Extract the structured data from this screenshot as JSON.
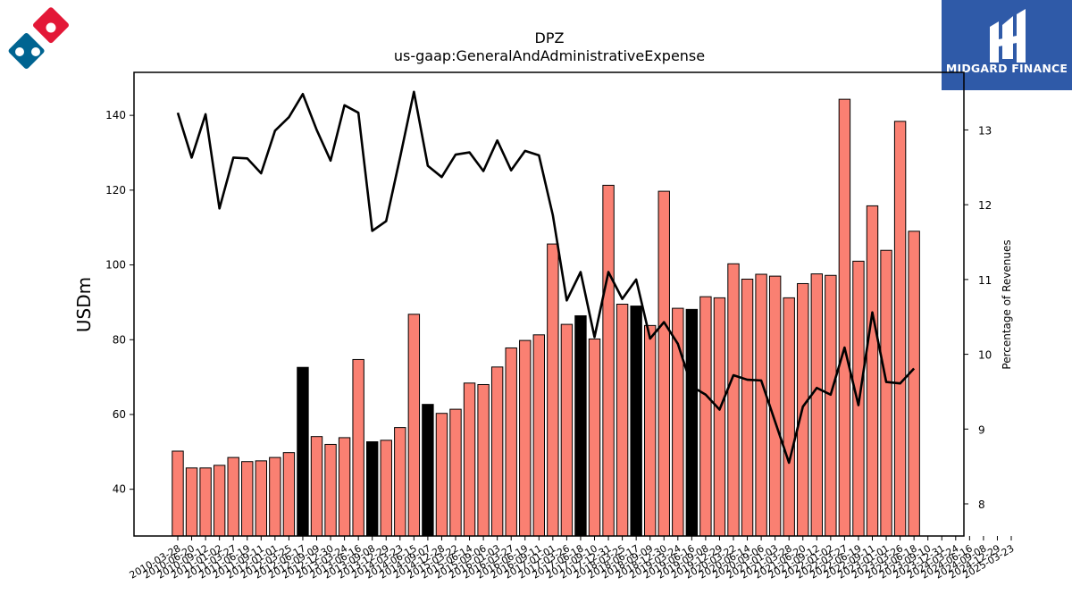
{
  "brand": {
    "name": "MIDGARD FINANCE",
    "box_color": "#2f5aa8",
    "company_logo_colors": {
      "blue": "#006491",
      "red": "#e31837"
    }
  },
  "chart_data": {
    "type": "bar",
    "title": "DPZ",
    "subtitle": "us-gaap:GeneralAndAdministrativeExpense",
    "ylabel": "USDm",
    "ylabel_right": "Percentage of Revenues",
    "ylim": [
      27.5,
      151.5
    ],
    "ylim_right": [
      7.57,
      13.77
    ],
    "yticks": [
      40,
      60,
      80,
      100,
      120,
      140
    ],
    "yticks_right": [
      8,
      9,
      10,
      11,
      12,
      13
    ],
    "grid": false,
    "colors": {
      "quarter": "#fa8072",
      "annual": "#000000",
      "line": "#000000"
    },
    "categories": [
      "2010-03-28",
      "2010-06-20",
      "2010-09-12",
      "2011-01-02",
      "2011-03-27",
      "2011-06-19",
      "2011-09-11",
      "2012-01-01",
      "2012-03-25",
      "2012-06-17",
      "2012-09-09",
      "2012-12-30",
      "2013-03-24",
      "2013-06-16",
      "2013-09-08",
      "2013-12-29",
      "2014-03-23",
      "2014-06-15",
      "2014-09-07",
      "2014-12-28",
      "2015-03-22",
      "2015-06-14",
      "2015-09-06",
      "2016-01-03",
      "2016-03-27",
      "2016-06-19",
      "2016-09-11",
      "2017-01-01",
      "2017-03-26",
      "2017-06-18",
      "2017-09-10",
      "2017-12-31",
      "2018-03-25",
      "2018-06-17",
      "2018-09-09",
      "2018-12-30",
      "2019-03-24",
      "2019-06-16",
      "2019-09-08",
      "2019-12-29",
      "2020-03-22",
      "2020-06-14",
      "2020-09-06",
      "2021-01-03",
      "2021-03-28",
      "2021-06-20",
      "2021-09-12",
      "2022-01-02",
      "2022-03-27",
      "2022-06-19",
      "2022-09-11",
      "2023-01-01",
      "2023-03-26",
      "2023-06-18",
      "2023-09-10",
      "2023-12-31",
      "2024-03-24",
      "2024-06-16",
      "2024-09-08",
      "2024-12-29",
      "2025-03-23"
    ],
    "xtick_labels": [
      "2010-03-28",
      "2010-06-20",
      "2010-09-12",
      "2011-01-02",
      "2011-03-27",
      "2011-06-19",
      "2011-09-11",
      "2012-01-01",
      "2012-03-25",
      "2012-06-17",
      "2012-09-09",
      "2012-12-30",
      "2013-03-24",
      "2013-06-16",
      "2013-09-08",
      "2013-12-29",
      "2014-03-23",
      "2014-06-15",
      "2014-09-07",
      "2014-12-28",
      "2015-03-22",
      "2015-06-14",
      "2015-09-06",
      "2016-01-03",
      "2016-03-27",
      "2016-06-19",
      "2016-09-11",
      "2017-01-01",
      "2017-03-26",
      "2017-06-18",
      "2017-09-10",
      "2017-12-31",
      "2018-03-25",
      "2018-06-17",
      "2018-09-09",
      "2018-12-30",
      "2019-03-24",
      "2019-06-16",
      "2019-09-08",
      "2019-12-29",
      "2020-03-22",
      "2020-06-14",
      "2020-09-06",
      "2021-01-03",
      "2021-03-28",
      "2021-06-20",
      "2021-09-12",
      "2022-01-02",
      "2022-03-27",
      "2022-06-19",
      "2022-09-11",
      "2023-01-01",
      "2023-03-26",
      "2023-06-18",
      "2023-09-10",
      "2023-12-31",
      "2024-03-24",
      "2024-06-16",
      "2024-09-08",
      "2024-12-29",
      "2025-03-23"
    ],
    "annual_flags": [
      false,
      false,
      false,
      false,
      false,
      false,
      false,
      false,
      false,
      true,
      false,
      false,
      false,
      false,
      true,
      false,
      false,
      false,
      true,
      false,
      false,
      false,
      false,
      false,
      false,
      false,
      false,
      false,
      false,
      true,
      false,
      false,
      false,
      true,
      false,
      false,
      false,
      true,
      false,
      false,
      false,
      false,
      false,
      false,
      false,
      false,
      false,
      false,
      false,
      false,
      false,
      false,
      false,
      false,
      true,
      false,
      false,
      false,
      true,
      false,
      false
    ],
    "series": [
      {
        "name": "",
        "axis": "left",
        "kind": "bar",
        "values": [
          50.2,
          45.7,
          45.7,
          46.4,
          48.5,
          47.4,
          47.6,
          48.5,
          49.8,
          72.6,
          54.1,
          52.0,
          53.8,
          74.7,
          52.7,
          53.1,
          56.5,
          86.8,
          62.7,
          60.3,
          61.4,
          68.4,
          68.0,
          72.7,
          77.8,
          79.8,
          81.3,
          105.6,
          84.1,
          86.4,
          80.2,
          121.3,
          89.5,
          89.0,
          83.8,
          119.7,
          88.4,
          88.1,
          91.5,
          91.2,
          100.3,
          96.2,
          97.5,
          97.0,
          91.2,
          95.0,
          97.6,
          97.2,
          144.3,
          101.0,
          115.8,
          103.9,
          138.4,
          109.0,
          null,
          null,
          null,
          null,
          null,
          null,
          null
        ]
      },
      {
        "name": "Percentage of Revenues",
        "axis": "right",
        "kind": "line",
        "values": [
          13.23,
          12.63,
          13.21,
          11.95,
          12.63,
          12.62,
          12.42,
          12.99,
          13.17,
          13.48,
          13.0,
          12.59,
          13.33,
          13.23,
          11.65,
          11.78,
          12.63,
          13.51,
          12.52,
          12.37,
          12.67,
          12.7,
          12.45,
          12.86,
          12.46,
          12.72,
          12.66,
          11.86,
          10.72,
          11.1,
          10.23,
          11.1,
          10.74,
          11.0,
          10.21,
          10.43,
          10.14,
          9.57,
          9.46,
          9.26,
          9.72,
          9.66,
          9.65,
          9.1,
          8.55,
          9.3,
          9.55,
          9.46,
          10.09,
          9.32,
          10.56,
          9.63,
          9.61,
          9.81,
          null,
          null,
          null,
          null,
          null,
          null,
          null
        ]
      }
    ]
  }
}
